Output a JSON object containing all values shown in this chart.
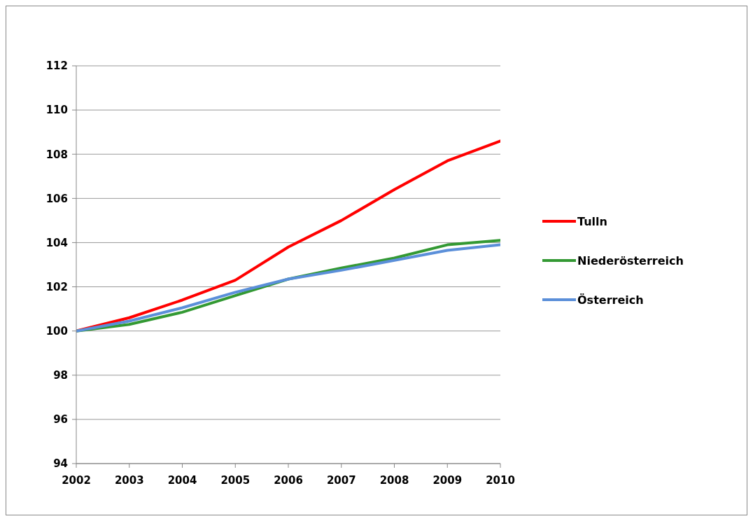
{
  "chart_data": {
    "type": "line",
    "x": [
      2002,
      2003,
      2004,
      2005,
      2006,
      2007,
      2008,
      2009,
      2010
    ],
    "series": [
      {
        "name": "Tulln",
        "color": "#ff0000",
        "values": [
          100,
          100.6,
          101.4,
          102.3,
          103.8,
          105.0,
          106.4,
          107.7,
          108.6
        ]
      },
      {
        "name": "Niederösterreich",
        "color": "#339933",
        "values": [
          100,
          100.3,
          100.85,
          101.6,
          102.35,
          102.85,
          103.3,
          103.9,
          104.1
        ]
      },
      {
        "name": "Österreich",
        "color": "#5b8fd9",
        "values": [
          100,
          100.45,
          101.05,
          101.75,
          102.35,
          102.75,
          103.2,
          103.65,
          103.9
        ]
      }
    ],
    "xlim": [
      2002,
      2010
    ],
    "xticks": [
      2002,
      2003,
      2004,
      2005,
      2006,
      2007,
      2008,
      2009,
      2010
    ],
    "ylim": [
      94,
      112
    ],
    "yticks": [
      94,
      96,
      98,
      100,
      102,
      104,
      106,
      108,
      110,
      112
    ],
    "grid": "y",
    "legend": "right",
    "marker": "none",
    "line_style": "solid"
  }
}
